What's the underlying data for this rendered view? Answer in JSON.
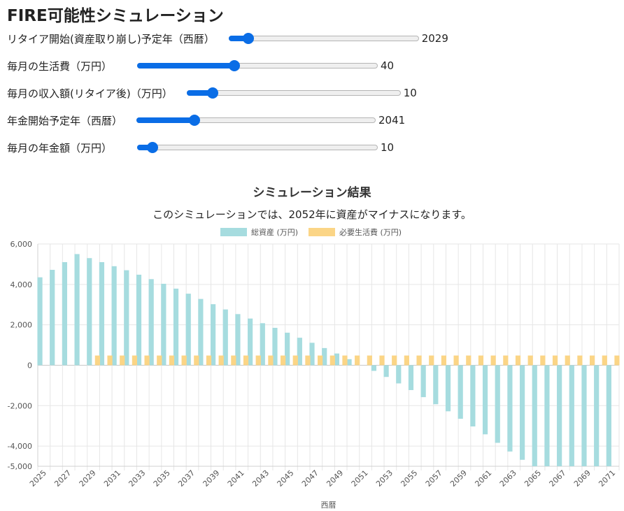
{
  "title": "FIRE可能性シミュレーション",
  "sliders": [
    {
      "label": "リタイア開始(資産取り崩し)予定年（西暦）",
      "value": "2029",
      "fraction": 0.1
    },
    {
      "label": "毎月の生活費（万円）",
      "value": "40",
      "fraction": 0.4
    },
    {
      "label": "毎月の収入額(リタイア後)（万円）",
      "value": "10",
      "fraction": 0.12
    },
    {
      "label": "年金開始予定年（西暦）",
      "value": "2041",
      "fraction": 0.24
    },
    {
      "label": "毎月の年金額（万円）",
      "value": "10",
      "fraction": 0.06
    }
  ],
  "chart": {
    "title": "シミュレーション結果",
    "subtitle": "このシミュレーションでは、2052年に資産がマイナスになります。"
  },
  "colors": {
    "accent": "#0a6de6",
    "assets": "#a6dcdf",
    "expense": "#fbd586"
  },
  "chart_data": {
    "type": "bar",
    "title": "シミュレーション結果",
    "xlabel": "西暦",
    "ylabel": "",
    "ylim": [
      -5000,
      6000
    ],
    "yticks": [
      "6,000",
      "4,000",
      "2,000",
      "0",
      "-2,000",
      "-4,000",
      "-5,000"
    ],
    "legend_position": "top",
    "grid": true,
    "categories": [
      "2025",
      "2026",
      "2027",
      "2028",
      "2029",
      "2030",
      "2031",
      "2032",
      "2033",
      "2034",
      "2035",
      "2036",
      "2037",
      "2038",
      "2039",
      "2040",
      "2041",
      "2042",
      "2043",
      "2044",
      "2045",
      "2046",
      "2047",
      "2048",
      "2049",
      "2050",
      "2051",
      "2052",
      "2053",
      "2054",
      "2055",
      "2056",
      "2057",
      "2058",
      "2059",
      "2060",
      "2061",
      "2062",
      "2063",
      "2064",
      "2065",
      "2066",
      "2067",
      "2068",
      "2069",
      "2070",
      "2071"
    ],
    "xtick_labels": [
      "2025",
      "2027",
      "2029",
      "2031",
      "2033",
      "2035",
      "2037",
      "2039",
      "2041",
      "2043",
      "2045",
      "2047",
      "2049",
      "2051",
      "2053",
      "2055",
      "2057",
      "2059",
      "2061",
      "2063",
      "2065",
      "2067",
      "2069",
      "2071"
    ],
    "series": [
      {
        "name": "総資産 (万円)",
        "values": [
          4350,
          4720,
          5100,
          5500,
          5300,
          5100,
          4900,
          4700,
          4480,
          4260,
          4030,
          3790,
          3540,
          3280,
          3020,
          2760,
          2530,
          2310,
          2080,
          1850,
          1610,
          1360,
          1110,
          850,
          580,
          300,
          0,
          -280,
          -580,
          -900,
          -1230,
          -1580,
          -1930,
          -2280,
          -2650,
          -3030,
          -3420,
          -3840,
          -4270,
          -4680,
          -5000,
          -5000,
          -5000,
          -5000,
          -5000,
          -5000,
          -5000
        ]
      },
      {
        "name": "必要生活費 (万円)",
        "values": [
          0,
          0,
          0,
          0,
          480,
          480,
          480,
          480,
          480,
          480,
          480,
          480,
          480,
          480,
          480,
          480,
          480,
          480,
          480,
          480,
          480,
          480,
          480,
          480,
          480,
          480,
          480,
          480,
          480,
          480,
          480,
          480,
          480,
          480,
          480,
          480,
          480,
          480,
          480,
          480,
          480,
          480,
          480,
          480,
          480,
          480,
          480
        ]
      }
    ]
  }
}
